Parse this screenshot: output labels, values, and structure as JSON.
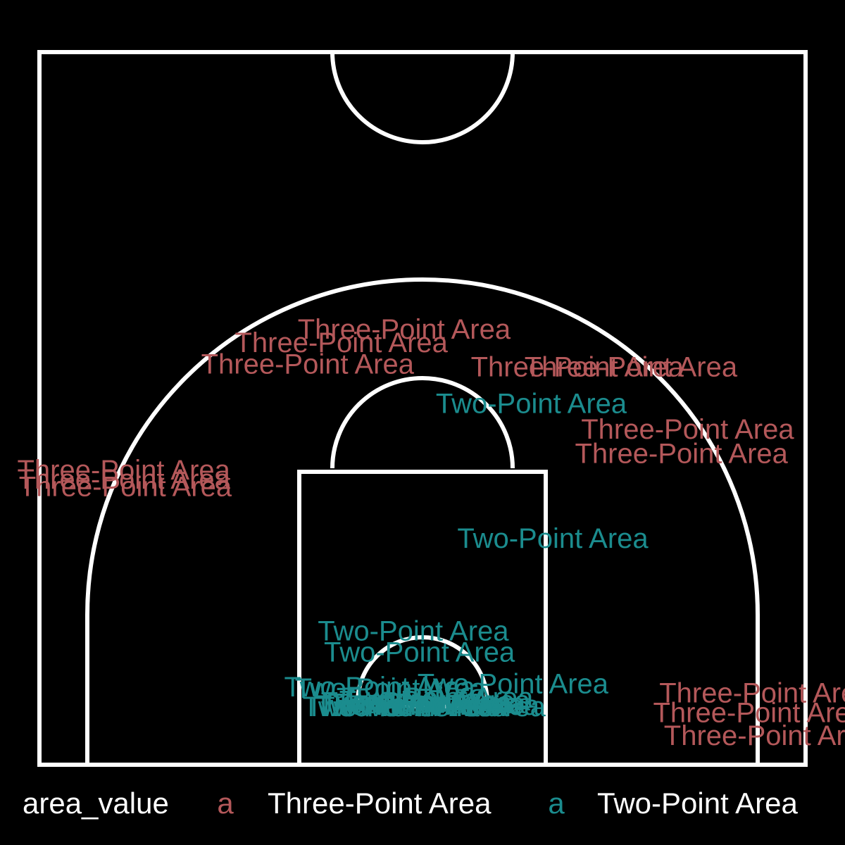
{
  "chart_data": {
    "type": "scatter",
    "title": "",
    "xlabel": "",
    "ylabel": "",
    "xlim": [
      -25,
      25
    ],
    "ylim": [
      -4,
      43
    ],
    "grid": false,
    "colors": {
      "Three-Point Area": "#b4585a",
      "Two-Point Area": "#1b8c8e"
    },
    "legend": {
      "position": "bottom",
      "title": "area_value",
      "key_glyph": "a",
      "entries": [
        "Three-Point Area",
        "Two-Point Area"
      ]
    },
    "points": [
      {
        "x": -1.2,
        "y": 24.6,
        "area": "Three-Point Area"
      },
      {
        "x": -5.3,
        "y": 23.7,
        "area": "Three-Point Area"
      },
      {
        "x": -7.5,
        "y": 22.3,
        "area": "Three-Point Area"
      },
      {
        "x": 10.1,
        "y": 22.1,
        "area": "Three-Point Area"
      },
      {
        "x": 13.6,
        "y": 22.1,
        "area": "Three-Point Area"
      },
      {
        "x": 17.3,
        "y": 18.0,
        "area": "Three-Point Area"
      },
      {
        "x": 16.9,
        "y": 16.4,
        "area": "Three-Point Area"
      },
      {
        "x": -19.5,
        "y": 15.3,
        "area": "Three-Point Area"
      },
      {
        "x": -19.5,
        "y": 14.7,
        "area": "Three-Point Area"
      },
      {
        "x": -19.4,
        "y": 14.2,
        "area": "Three-Point Area"
      },
      {
        "x": 22.4,
        "y": 0.6,
        "area": "Three-Point Area"
      },
      {
        "x": 22.0,
        "y": -0.7,
        "area": "Three-Point Area"
      },
      {
        "x": 22.7,
        "y": -2.2,
        "area": "Three-Point Area"
      },
      {
        "x": 7.1,
        "y": 19.7,
        "area": "Two-Point Area"
      },
      {
        "x": 8.5,
        "y": 10.8,
        "area": "Two-Point Area"
      },
      {
        "x": -0.6,
        "y": 4.7,
        "area": "Two-Point Area"
      },
      {
        "x": -0.2,
        "y": 3.3,
        "area": "Two-Point Area"
      },
      {
        "x": 5.9,
        "y": 1.2,
        "area": "Two-Point Area"
      },
      {
        "x": -2.8,
        "y": 1.0,
        "area": "Two-Point Area"
      },
      {
        "x": -2.1,
        "y": 0.9,
        "area": "Two-Point Area"
      },
      {
        "x": 1.0,
        "y": 0.3,
        "area": "Two-Point Area"
      },
      {
        "x": 0.8,
        "y": 0.1,
        "area": "Two-Point Area"
      },
      {
        "x": -0.4,
        "y": 0.0,
        "area": "Two-Point Area"
      },
      {
        "x": 0.5,
        "y": -0.1,
        "area": "Two-Point Area"
      },
      {
        "x": -1.4,
        "y": -0.3,
        "area": "Two-Point Area"
      },
      {
        "x": 1.4,
        "y": -0.2,
        "area": "Two-Point Area"
      },
      {
        "x": -0.6,
        "y": -0.3,
        "area": "Two-Point Area"
      },
      {
        "x": -0.8,
        "y": -0.2,
        "area": "Two-Point Area"
      },
      {
        "x": 0.1,
        "y": -0.1,
        "area": "Two-Point Area"
      },
      {
        "x": 1.8,
        "y": -0.3,
        "area": "Two-Point Area"
      },
      {
        "x": -1.6,
        "y": -0.3,
        "area": "Two-Point Area"
      }
    ]
  }
}
